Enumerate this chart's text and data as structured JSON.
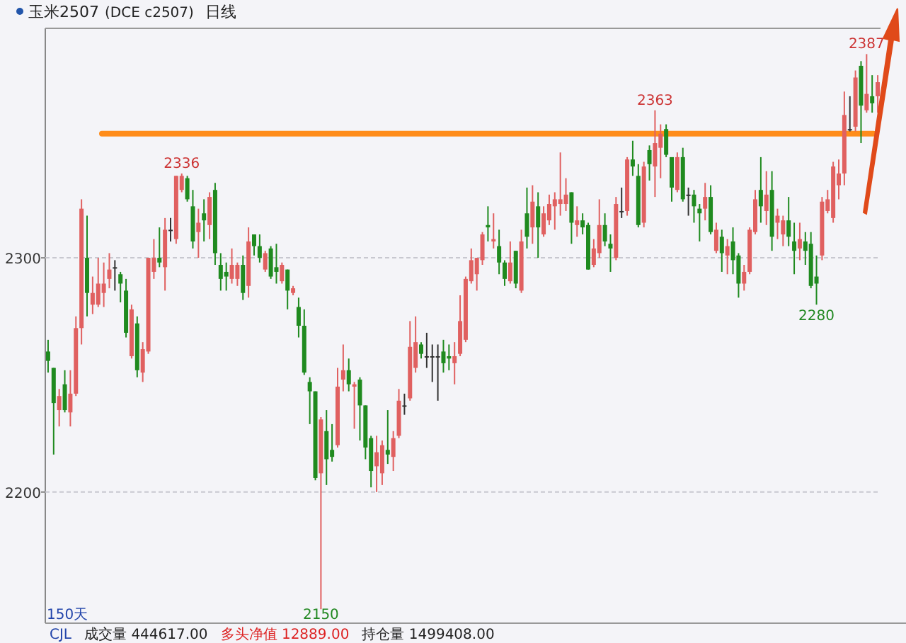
{
  "chart_data": {
    "type": "candlestick",
    "title": "玉米2507",
    "subtitle": "(DCE c2507)",
    "categories": [
      null,
      null,
      null,
      null,
      null,
      null,
      null,
      null,
      null,
      null,
      null,
      null,
      null,
      null,
      null,
      null,
      null,
      null,
      null,
      null,
      null,
      null,
      null,
      null,
      null,
      null,
      null,
      null,
      null,
      null,
      null,
      null,
      null,
      null,
      null,
      null,
      null,
      null,
      null,
      null,
      null,
      null,
      null,
      null,
      null,
      null,
      null,
      null,
      null,
      null,
      null,
      null,
      null,
      null,
      null,
      null,
      null,
      null,
      null,
      null,
      null,
      null,
      null,
      null,
      null,
      null,
      null,
      null,
      null,
      null,
      null,
      null,
      null,
      null,
      null,
      null,
      null,
      null,
      null,
      null,
      null,
      null,
      null,
      null,
      null,
      null,
      null,
      null,
      null,
      null,
      null,
      null,
      null,
      null,
      null,
      null,
      null,
      null,
      null,
      null,
      null,
      null,
      null,
      null,
      null,
      null,
      null,
      null,
      null,
      null,
      null,
      null,
      null,
      null,
      null,
      null,
      null,
      null,
      null,
      null,
      null,
      null,
      null,
      null,
      null,
      null,
      null,
      null,
      null,
      null,
      null,
      null,
      null,
      null,
      null,
      null,
      null,
      null,
      null,
      null,
      null,
      null,
      null,
      null,
      null,
      null,
      null,
      null,
      null,
      null
    ],
    "ohlc": [
      [
        2260,
        2265,
        2251,
        2256
      ],
      [
        2253,
        2253,
        2216,
        2238
      ],
      [
        2235,
        2244,
        2228,
        2241
      ],
      [
        2246,
        2252,
        2234,
        2235
      ],
      [
        2234,
        2252,
        2228,
        2242
      ],
      [
        2242,
        2275,
        2241,
        2270
      ],
      [
        2270,
        2325,
        2263,
        2321
      ],
      [
        2300,
        2318,
        2275,
        2285
      ],
      [
        2280,
        2292,
        2276,
        2285
      ],
      [
        2280,
        2300,
        2279,
        2289
      ],
      [
        2285,
        2298,
        2279,
        2289
      ],
      [
        2291,
        2302,
        2287,
        2295
      ],
      [
        2296,
        2299,
        2286,
        2296
      ],
      [
        2293,
        2294,
        2281,
        2289
      ],
      [
        2286,
        2291,
        2266,
        2268
      ],
      [
        2258,
        2280,
        2257,
        2278
      ],
      [
        2272,
        2275,
        2249,
        2252
      ],
      [
        2251,
        2264,
        2247,
        2261
      ],
      [
        2260,
        2300,
        2259,
        2300
      ],
      [
        2294,
        2308,
        2291,
        2300
      ],
      [
        2300,
        2313,
        2296,
        2298
      ],
      [
        2296,
        2317,
        2286,
        2312
      ],
      [
        2312,
        2317,
        2307,
        2312
      ],
      [
        2308,
        2335,
        2306,
        2335
      ],
      [
        2329,
        2336,
        2328,
        2335
      ],
      [
        2334,
        2335,
        2324,
        2325
      ],
      [
        2322,
        2329,
        2304,
        2307
      ],
      [
        2311,
        2321,
        2300,
        2315
      ],
      [
        2319,
        2325,
        2307,
        2316
      ],
      [
        2314,
        2328,
        2308,
        2326
      ],
      [
        2329,
        2332,
        2297,
        2302
      ],
      [
        2297,
        2302,
        2286,
        2291
      ],
      [
        2294,
        2298,
        2286,
        2292
      ],
      [
        2291,
        2304,
        2289,
        2297
      ],
      [
        2291,
        2298,
        2288,
        2297
      ],
      [
        2297,
        2301,
        2282,
        2285
      ],
      [
        2288,
        2313,
        2283,
        2307
      ],
      [
        2310,
        2310,
        2301,
        2305
      ],
      [
        2305,
        2310,
        2298,
        2300
      ],
      [
        2295,
        2303,
        2294,
        2302
      ],
      [
        2304,
        2305,
        2291,
        2292
      ],
      [
        2296,
        2306,
        2289,
        2294
      ],
      [
        2290,
        2298,
        2289,
        2297
      ],
      [
        2295,
        2295,
        2278,
        2286
      ],
      [
        2285,
        2288,
        2284,
        2287
      ],
      [
        2279,
        2283,
        2266,
        2271
      ],
      [
        2271,
        2278,
        2250,
        2251
      ],
      [
        2247,
        2249,
        2229,
        2243
      ],
      [
        2243,
        2243,
        2205,
        2206
      ],
      [
        2208,
        2232,
        2150,
        2231
      ],
      [
        2226,
        2235,
        2203,
        2214
      ],
      [
        2218,
        2229,
        2213,
        2215
      ],
      [
        2220,
        2253,
        2219,
        2245
      ],
      [
        2248,
        2263,
        2243,
        2252
      ],
      [
        2252,
        2257,
        2243,
        2246
      ],
      [
        2245,
        2247,
        2227,
        2246
      ],
      [
        2248,
        2249,
        2222,
        2237
      ],
      [
        2237,
        2237,
        2214,
        2219
      ],
      [
        2223,
        2224,
        2202,
        2209
      ],
      [
        2211,
        2224,
        2200,
        2217
      ],
      [
        2208,
        2222,
        2203,
        2220
      ],
      [
        2218,
        2235,
        2212,
        2216
      ],
      [
        2215,
        2226,
        2209,
        2223
      ],
      [
        2224,
        2244,
        2223,
        2239
      ],
      [
        2237,
        2242,
        2233,
        2237
      ],
      [
        2240,
        2273,
        2239,
        2262
      ],
      [
        2253,
        2275,
        2251,
        2264
      ],
      [
        2263,
        2264,
        2257,
        2259
      ],
      [
        2258,
        2268,
        2253,
        2258
      ],
      [
        2258,
        2263,
        2247,
        2258
      ],
      [
        2258,
        2263,
        2239,
        2258
      ],
      [
        2260,
        2265,
        2251,
        2255
      ],
      [
        2258,
        2263,
        2252,
        2257
      ],
      [
        2255,
        2264,
        2246,
        2258
      ],
      [
        2259,
        2284,
        2258,
        2273
      ],
      [
        2265,
        2292,
        2264,
        2291
      ],
      [
        2290,
        2304,
        2289,
        2299
      ],
      [
        2293,
        2300,
        2286,
        2300
      ],
      [
        2299,
        2311,
        2297,
        2310
      ],
      [
        2314,
        2322,
        2307,
        2313
      ],
      [
        2307,
        2319,
        2304,
        2308
      ],
      [
        2305,
        2312,
        2293,
        2298
      ],
      [
        2298,
        2299,
        2288,
        2291
      ],
      [
        2290,
        2307,
        2289,
        2298
      ],
      [
        2303,
        2303,
        2287,
        2289
      ],
      [
        2286,
        2312,
        2285,
        2307
      ],
      [
        2319,
        2330,
        2304,
        2309
      ],
      [
        2313,
        2331,
        2306,
        2324
      ],
      [
        2322,
        2328,
        2300,
        2313
      ],
      [
        2310,
        2322,
        2309,
        2319
      ],
      [
        2316,
        2327,
        2314,
        2323
      ],
      [
        2322,
        2328,
        2312,
        2325
      ],
      [
        2323,
        2345,
        2318,
        2325
      ],
      [
        2323,
        2334,
        2320,
        2327
      ],
      [
        2328,
        2328,
        2306,
        2315
      ],
      [
        2314,
        2322,
        2309,
        2316
      ],
      [
        2316,
        2319,
        2310,
        2313
      ],
      [
        2314,
        2315,
        2295,
        2295
      ],
      [
        2297,
        2308,
        2296,
        2304
      ],
      [
        2302,
        2325,
        2300,
        2314
      ],
      [
        2314,
        2319,
        2305,
        2307
      ],
      [
        2306,
        2310,
        2294,
        2304
      ],
      [
        2300,
        2326,
        2299,
        2323
      ],
      [
        2320,
        2330,
        2317,
        2320
      ],
      [
        2320,
        2343,
        2318,
        2342
      ],
      [
        2342,
        2350,
        2335,
        2339
      ],
      [
        2335,
        2340,
        2313,
        2314
      ],
      [
        2315,
        2341,
        2313,
        2339
      ],
      [
        2346,
        2348,
        2333,
        2340
      ],
      [
        2339,
        2363,
        2326,
        2349
      ],
      [
        2347,
        2357,
        2334,
        2353
      ],
      [
        2355,
        2357,
        2343,
        2344
      ],
      [
        2343,
        2343,
        2324,
        2330
      ],
      [
        2329,
        2345,
        2328,
        2343
      ],
      [
        2343,
        2347,
        2324,
        2325
      ],
      [
        2327,
        2330,
        2318,
        2327
      ],
      [
        2327,
        2329,
        2315,
        2322
      ],
      [
        2321,
        2323,
        2307,
        2319
      ],
      [
        2321,
        2332,
        2316,
        2326
      ],
      [
        2326,
        2331,
        2310,
        2311
      ],
      [
        2303,
        2315,
        2302,
        2312
      ],
      [
        2309,
        2312,
        2294,
        2302
      ],
      [
        2301,
        2308,
        2293,
        2305
      ],
      [
        2307,
        2313,
        2293,
        2299
      ],
      [
        2301,
        2302,
        2283,
        2289
      ],
      [
        2289,
        2297,
        2286,
        2294
      ],
      [
        2294,
        2313,
        2293,
        2312
      ],
      [
        2311,
        2329,
        2310,
        2325
      ],
      [
        2329,
        2343,
        2315,
        2322
      ],
      [
        2320,
        2337,
        2314,
        2327
      ],
      [
        2329,
        2337,
        2303,
        2309
      ],
      [
        2315,
        2321,
        2308,
        2318
      ],
      [
        2310,
        2318,
        2305,
        2316
      ],
      [
        2316,
        2326,
        2305,
        2309
      ],
      [
        2307,
        2315,
        2293,
        2303
      ],
      [
        2304,
        2315,
        2299,
        2308
      ],
      [
        2307,
        2311,
        2297,
        2303
      ],
      [
        2306,
        2311,
        2287,
        2288
      ],
      [
        2292,
        2301,
        2280,
        2289
      ],
      [
        2301,
        2326,
        2299,
        2324
      ],
      [
        2320,
        2329,
        2319,
        2325
      ],
      [
        2317,
        2341,
        2315,
        2339
      ],
      [
        2331,
        2342,
        2325,
        2336
      ],
      [
        2336,
        2371,
        2331,
        2361
      ],
      [
        2355,
        2369,
        2354,
        2355
      ],
      [
        2356,
        2380,
        2354,
        2377
      ],
      [
        2382,
        2384,
        2349,
        2365
      ],
      [
        2363,
        2387,
        2362,
        2370
      ],
      [
        2369,
        2378,
        2362,
        2366
      ],
      [
        2369,
        2378,
        2362,
        2375
      ]
    ],
    "ylim": [
      2144,
      2398
    ],
    "yticks": [
      2200,
      2300
    ],
    "grid": "y",
    "tick_labels": "y",
    "ref_lines": [
      {
        "axis": "y",
        "value": 2353,
        "color": "#ff8c1a"
      }
    ],
    "annotations": [
      "日线",
      "150天",
      "CJL",
      "成交量 444617.00",
      "多头净值 12889.00",
      "持仓量 1499408.00",
      {
        "text": "2336",
        "y": 2336
      },
      {
        "text": "2150",
        "y": 2150
      },
      {
        "text": "2363",
        "y": 2363
      },
      {
        "text": "2280",
        "y": 2280
      },
      {
        "text": "2387",
        "y": 2387
      }
    ]
  }
}
